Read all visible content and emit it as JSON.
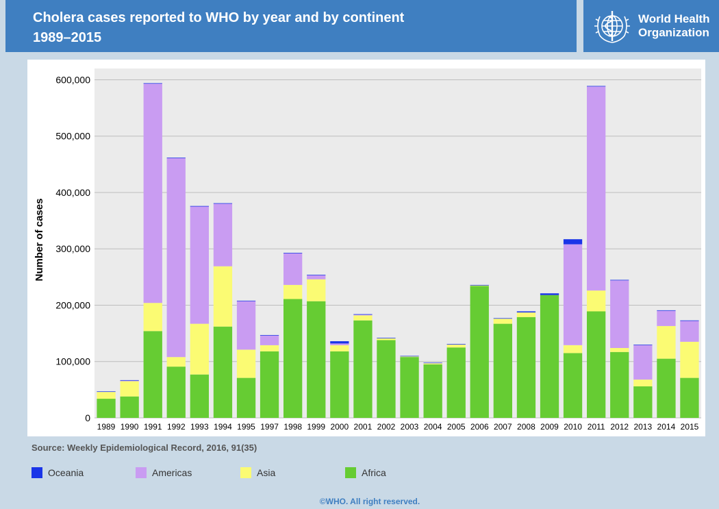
{
  "header": {
    "title_line1": "Cholera cases reported to WHO by year and by continent",
    "title_line2": "1989–2015",
    "logo_line1": "World Health",
    "logo_line2": "Organization",
    "logo_icon": "who-emblem-icon"
  },
  "source": "Source: Weekly Epidemiological Record, 2016, 91(35)",
  "copyright": "©WHO. All right reserved.",
  "colors": {
    "header_bg": "#3f7fc1",
    "page_bg": "#c9d9e6",
    "plot_bg": "#ebebeb",
    "Oceania": "#1a35e8",
    "Americas": "#c99cf2",
    "Asia": "#fbfb73",
    "Africa": "#66cc33"
  },
  "chart_data": {
    "type": "bar",
    "stacked": true,
    "title": "Cholera cases reported to WHO by year and by continent 1989–2015",
    "xlabel": "",
    "ylabel": "Number of cases",
    "ylim": [
      0,
      620000
    ],
    "yticks": [
      0,
      100000,
      200000,
      300000,
      400000,
      500000,
      600000
    ],
    "ytick_labels": [
      "0",
      "100,000",
      "200,000",
      "300,000",
      "400,000",
      "500,000",
      "600,000"
    ],
    "grid": true,
    "legend": "bottom",
    "categories": [
      "1989",
      "1990",
      "1991",
      "1992",
      "1993",
      "1994",
      "1995",
      "1997",
      "1998",
      "1999",
      "2000",
      "2001",
      "2002",
      "2003",
      "2004",
      "2005",
      "2006",
      "2007",
      "2008",
      "2009",
      "2010",
      "2011",
      "2012",
      "2013",
      "2014",
      "2015"
    ],
    "series": [
      {
        "name": "Africa",
        "values": [
          34000,
          38000,
          154000,
          91000,
          77000,
          162000,
          71000,
          118000,
          211000,
          207000,
          118000,
          173000,
          138000,
          108000,
          95000,
          125000,
          234000,
          167000,
          179000,
          218000,
          115000,
          189000,
          117000,
          56000,
          105000,
          71000
        ]
      },
      {
        "name": "Asia",
        "values": [
          12000,
          27000,
          50000,
          17000,
          90000,
          107000,
          50000,
          11000,
          25000,
          39000,
          11000,
          9000,
          3000,
          1000,
          2000,
          5000,
          1000,
          9000,
          8000,
          0,
          14000,
          37000,
          7000,
          12000,
          58000,
          64000
        ]
      },
      {
        "name": "Americas",
        "values": [
          0,
          1000,
          389000,
          353000,
          208000,
          111000,
          86000,
          17000,
          56000,
          7000,
          3000,
          1000,
          0,
          0,
          0,
          0,
          0,
          0,
          0,
          0,
          179000,
          362000,
          120000,
          61000,
          27000,
          37000
        ]
      },
      {
        "name": "Oceania",
        "values": [
          1000,
          1000,
          1000,
          1000,
          1000,
          1000,
          1000,
          1000,
          1000,
          1000,
          4000,
          1000,
          1000,
          1000,
          1000,
          1000,
          1000,
          1000,
          2000,
          3000,
          9000,
          1000,
          1000,
          1000,
          1000,
          1000
        ]
      }
    ]
  },
  "legend_items": [
    {
      "label": "Oceania",
      "color": "#1a35e8"
    },
    {
      "label": "Americas",
      "color": "#c99cf2"
    },
    {
      "label": "Asia",
      "color": "#fbfb73"
    },
    {
      "label": "Africa",
      "color": "#66cc33"
    }
  ]
}
